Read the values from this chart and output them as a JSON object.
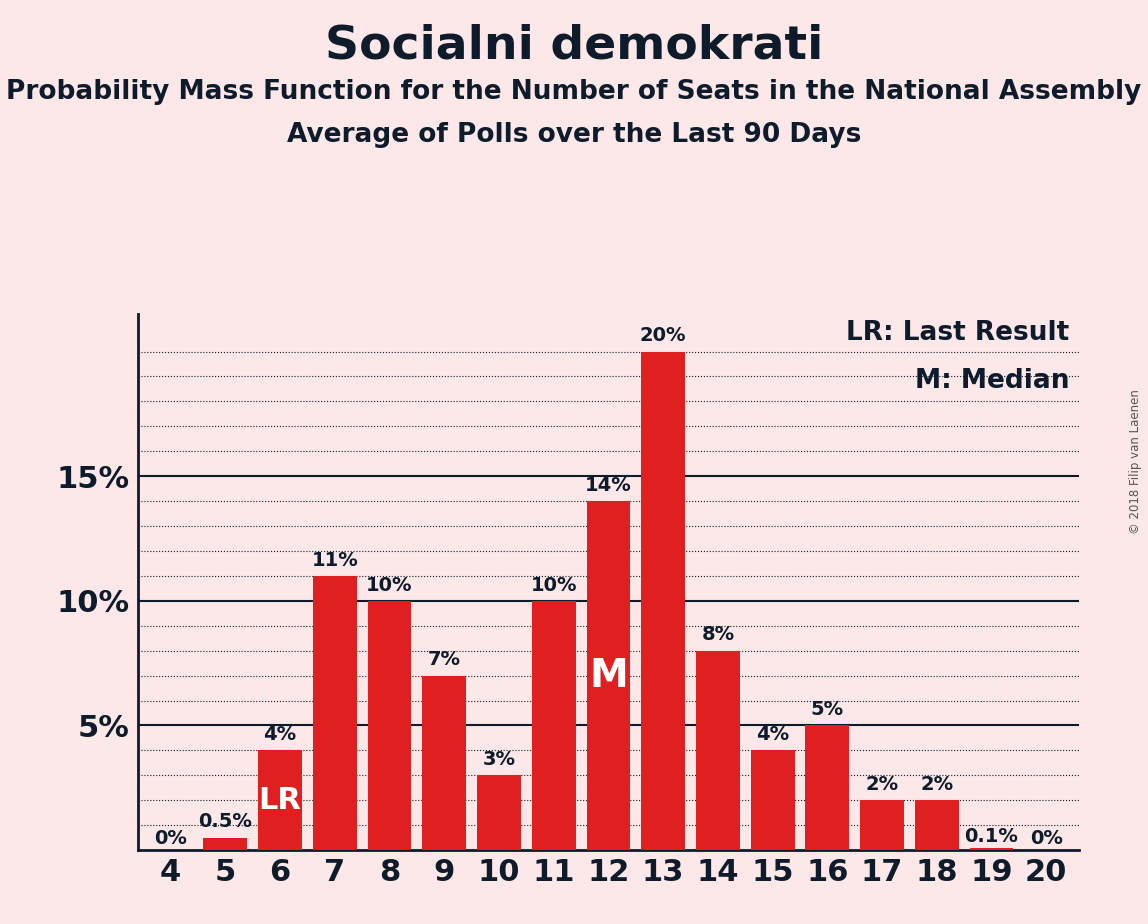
{
  "title": "Socialni demokrati",
  "subtitle1": "Probability Mass Function for the Number of Seats in the National Assembly",
  "subtitle2": "Average of Polls over the Last 90 Days",
  "copyright": "© 2018 Filip van Laenen",
  "categories": [
    4,
    5,
    6,
    7,
    8,
    9,
    10,
    11,
    12,
    13,
    14,
    15,
    16,
    17,
    18,
    19,
    20
  ],
  "values": [
    0.0,
    0.5,
    4.0,
    11.0,
    10.0,
    7.0,
    3.0,
    10.0,
    14.0,
    20.0,
    8.0,
    4.0,
    5.0,
    2.0,
    2.0,
    0.1,
    0.0
  ],
  "labels": [
    "0%",
    "0.5%",
    "4%",
    "11%",
    "10%",
    "7%",
    "3%",
    "10%",
    "14%",
    "20%",
    "8%",
    "4%",
    "5%",
    "2%",
    "2%",
    "0.1%",
    "0%"
  ],
  "bar_color": "#e02020",
  "background_color": "#fce8e8",
  "text_color": "#0d1b2a",
  "ylim": [
    0,
    21.5
  ],
  "solid_yticks": [
    5,
    10,
    15
  ],
  "dotted_yticks": [
    1,
    2,
    3,
    4,
    6,
    7,
    8,
    9,
    11,
    12,
    13,
    14,
    16,
    17,
    18,
    19,
    20
  ],
  "ytick_labels_vals": [
    5,
    10,
    15
  ],
  "ytick_labels_text": [
    "5%",
    "10%",
    "15%"
  ],
  "median_seat": 12,
  "lr_seat": 6,
  "legend_lr": "LR: Last Result",
  "legend_m": "M: Median",
  "title_fontsize": 34,
  "subtitle_fontsize": 19,
  "axis_tick_fontsize": 22,
  "label_fontsize": 14,
  "legend_fontsize": 19,
  "lr_fontsize": 22,
  "m_fontsize": 28
}
